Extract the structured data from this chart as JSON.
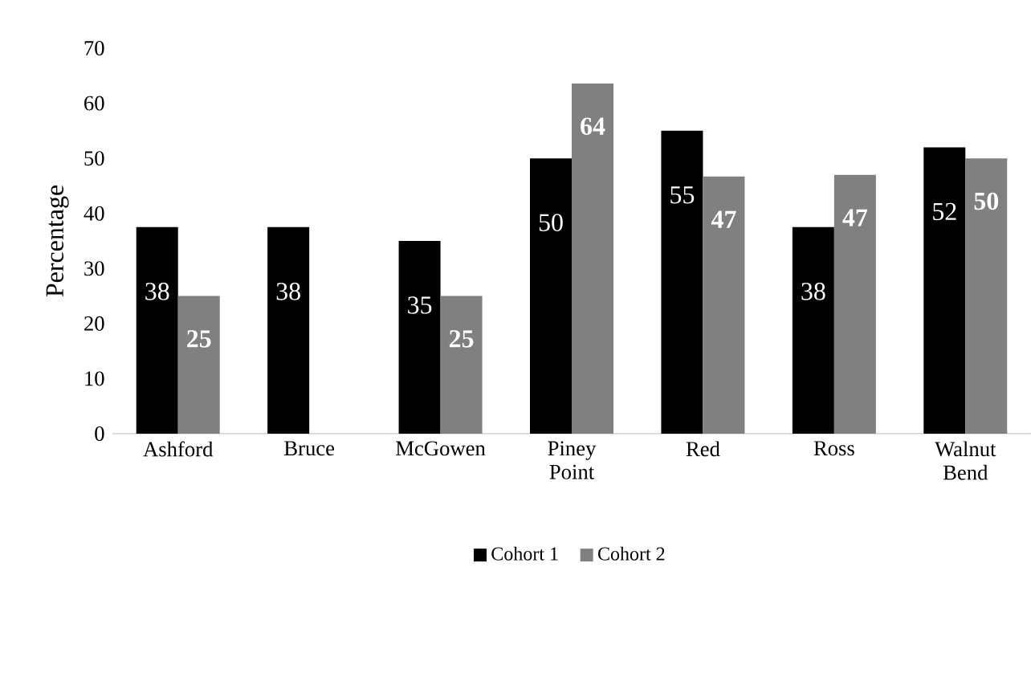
{
  "chart_data": {
    "type": "bar",
    "ylabel": "Percentage",
    "categories": [
      "Ashford",
      "Bruce",
      "McGowen",
      "Piney Point",
      "Red",
      "Ross",
      "Walnut Bend"
    ],
    "series": [
      {
        "name": "Cohort 1",
        "color": "#000000",
        "values": [
          37.5,
          37.5,
          35,
          50,
          55,
          37.5,
          52
        ],
        "value_labels": [
          "38",
          "38",
          "35",
          "50",
          "55",
          "38",
          "52"
        ]
      },
      {
        "name": "Cohort 2",
        "color": "#808080",
        "values": [
          25,
          null,
          25,
          63.6,
          46.7,
          47,
          50
        ],
        "value_labels": [
          "25",
          null,
          "25",
          "64",
          "47",
          "47",
          "50"
        ]
      }
    ],
    "ylim": [
      0,
      70
    ],
    "yticks": [
      0,
      10,
      20,
      30,
      40,
      50,
      60,
      70
    ],
    "grid": false,
    "legend": "bottom"
  }
}
